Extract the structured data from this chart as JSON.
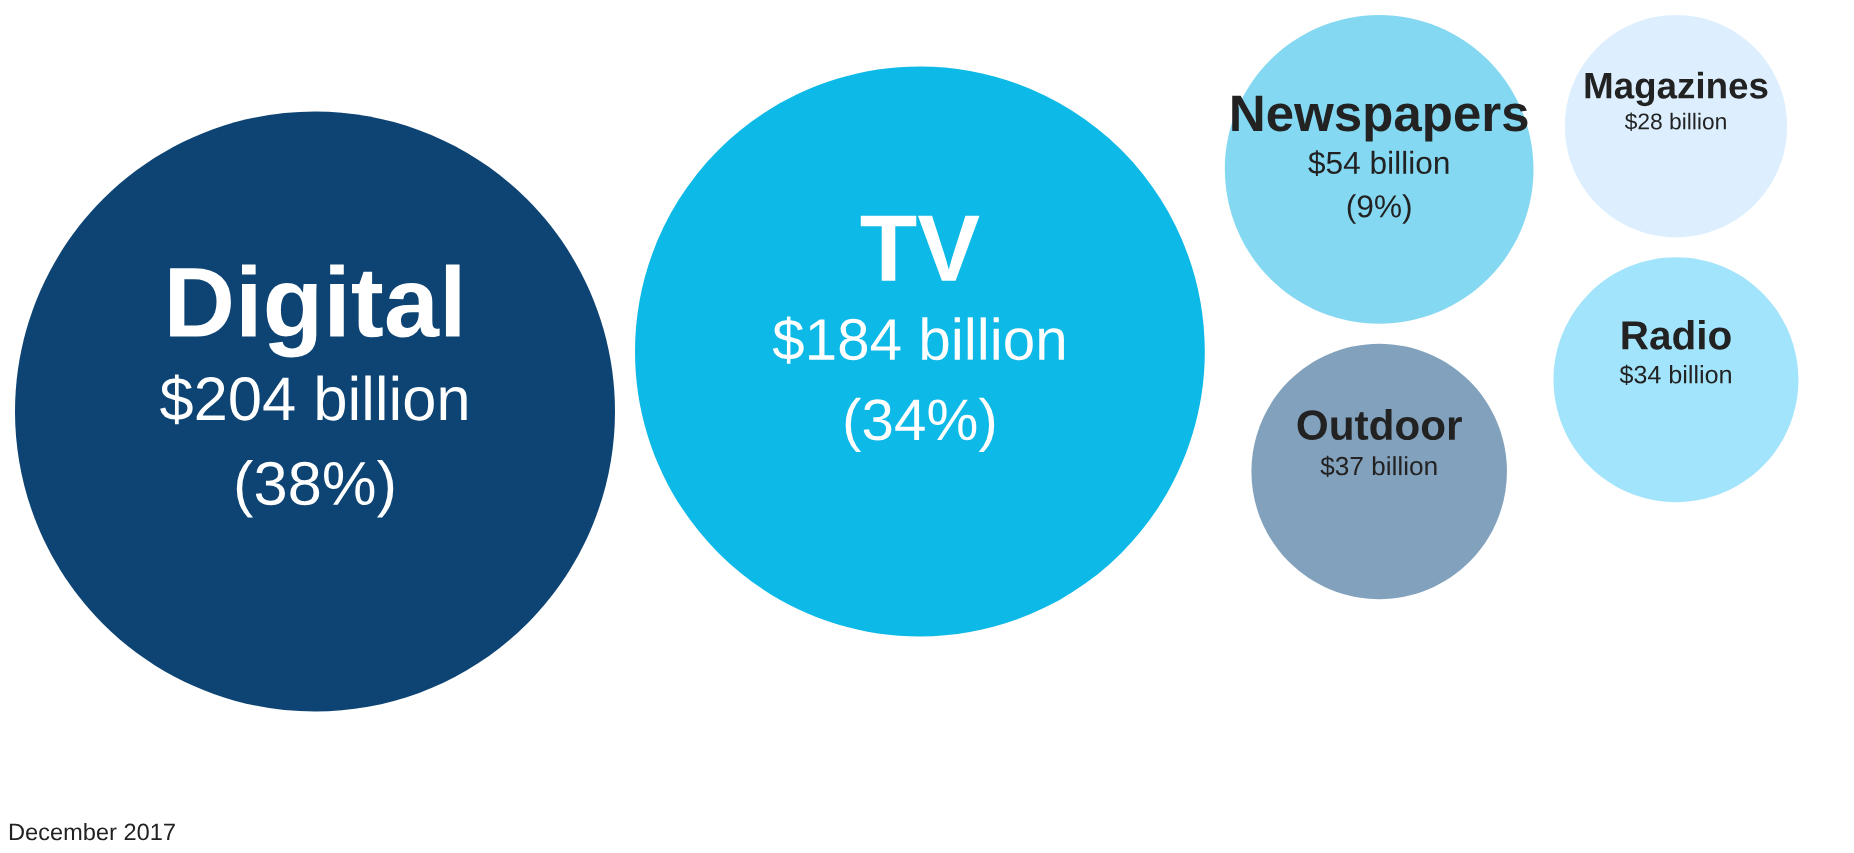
{
  "chart_data": {
    "type": "other",
    "categories": [
      "Digital",
      "TV",
      "Newspapers",
      "Outdoor",
      "Magazines",
      "Radio"
    ],
    "values": [
      204,
      184,
      54,
      37,
      28,
      34
    ],
    "value_labels": [
      "$204 billion",
      "$184 billion",
      "$54 billion",
      "$37 billion",
      "$28 billion",
      "$34 billion"
    ],
    "colors": [
      "#003a6b",
      "#00b5e5",
      "#7dd6f0",
      "#7b9cb8",
      "#dbeeff",
      "#9de3fb"
    ],
    "annotations": [
      {
        "text": "(38%)",
        "x": "Digital"
      },
      {
        "text": "(34%)",
        "x": "TV"
      },
      {
        "text": "(9%)",
        "x": "Newspapers"
      },
      "December 2017"
    ]
  }
}
